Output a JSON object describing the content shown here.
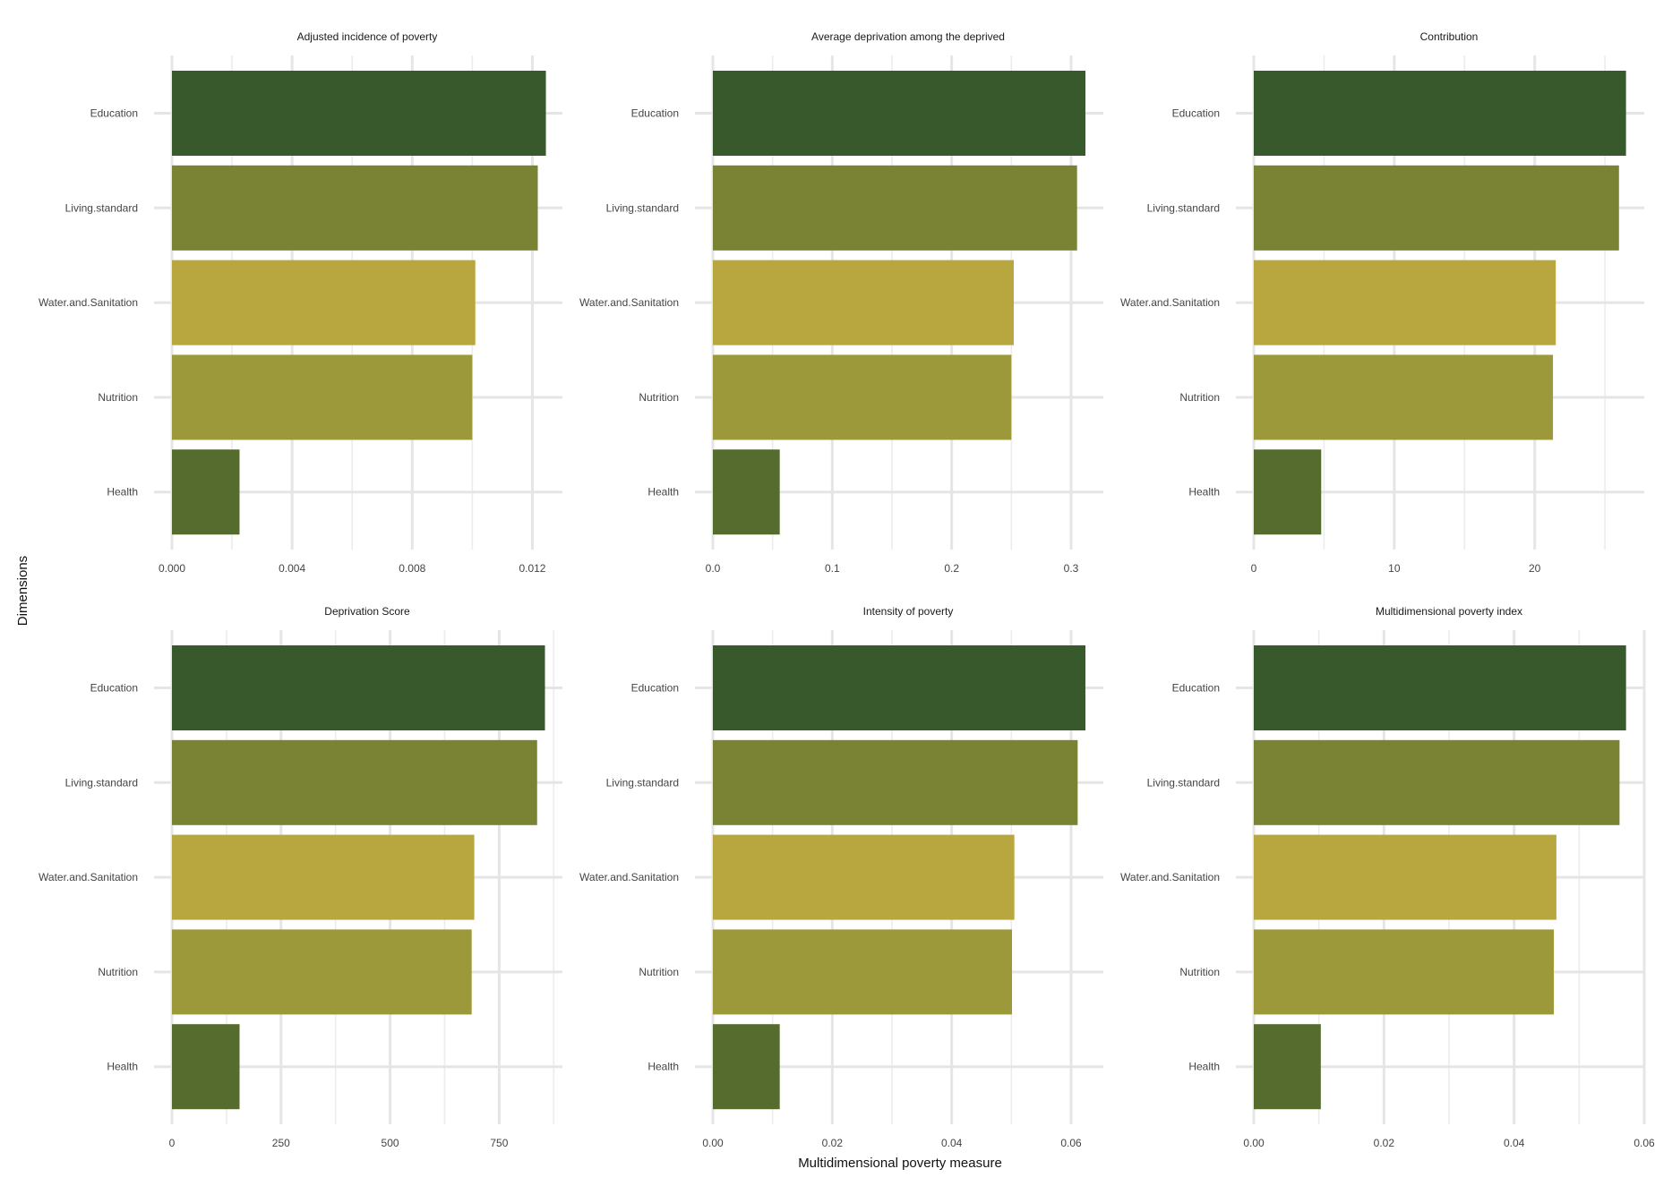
{
  "xlabel": "Multidimensional poverty measure",
  "ylabel": "Dimensions",
  "chart_data": [
    {
      "type": "bar",
      "orientation": "horizontal",
      "title": "Adjusted incidence of poverty",
      "categories": [
        "Education",
        "Living.standard",
        "Water.and.Sanitation",
        "Nutrition",
        "Health"
      ],
      "values": [
        0.01245,
        0.01218,
        0.0101,
        0.01,
        0.00225
      ],
      "colors": [
        "#37592b",
        "#7a8234",
        "#b8a73f",
        "#9c993a",
        "#566c2f"
      ],
      "xlim": [
        0,
        0.013
      ],
      "ticks": [
        0,
        0.004,
        0.008,
        0.012
      ],
      "tick_labels": [
        "0.000",
        "0.004",
        "0.008",
        "0.012"
      ],
      "minor_ticks": [
        0.002,
        0.006,
        0.01
      ]
    },
    {
      "type": "bar",
      "orientation": "horizontal",
      "title": "Average deprivation among the deprived",
      "categories": [
        "Education",
        "Living.standard",
        "Water.and.Sanitation",
        "Nutrition",
        "Health"
      ],
      "values": [
        0.312,
        0.305,
        0.252,
        0.25,
        0.056
      ],
      "colors": [
        "#37592b",
        "#7a8234",
        "#b8a73f",
        "#9c993a",
        "#566c2f"
      ],
      "xlim": [
        0,
        0.327
      ],
      "ticks": [
        0,
        0.1,
        0.2,
        0.3
      ],
      "tick_labels": [
        "0.0",
        "0.1",
        "0.2",
        "0.3"
      ],
      "minor_ticks": [
        0.05,
        0.15,
        0.25
      ]
    },
    {
      "type": "bar",
      "orientation": "horizontal",
      "title": "Contribution",
      "categories": [
        "Education",
        "Living.standard",
        "Water.and.Sanitation",
        "Nutrition",
        "Health"
      ],
      "values": [
        26.5,
        26.0,
        21.5,
        21.3,
        4.8
      ],
      "colors": [
        "#37592b",
        "#7a8234",
        "#b8a73f",
        "#9c993a",
        "#566c2f"
      ],
      "xlim": [
        0,
        27.8
      ],
      "ticks": [
        0,
        10,
        20
      ],
      "tick_labels": [
        "0",
        "10",
        "20"
      ],
      "minor_ticks": [
        5,
        15,
        25
      ]
    },
    {
      "type": "bar",
      "orientation": "horizontal",
      "title": "Deprivation Score",
      "categories": [
        "Education",
        "Living.standard",
        "Water.and.Sanitation",
        "Nutrition",
        "Health"
      ],
      "values": [
        855,
        837,
        693,
        687,
        155
      ],
      "colors": [
        "#37592b",
        "#7a8234",
        "#b8a73f",
        "#9c993a",
        "#566c2f"
      ],
      "xlim": [
        0,
        895
      ],
      "ticks": [
        0,
        250,
        500,
        750
      ],
      "tick_labels": [
        "0",
        "250",
        "500",
        "750"
      ],
      "minor_ticks": [
        125,
        375,
        625,
        875
      ]
    },
    {
      "type": "bar",
      "orientation": "horizontal",
      "title": "Intensity of poverty",
      "categories": [
        "Education",
        "Living.standard",
        "Water.and.Sanitation",
        "Nutrition",
        "Health"
      ],
      "values": [
        0.0624,
        0.0611,
        0.0505,
        0.0501,
        0.0112
      ],
      "colors": [
        "#37592b",
        "#7a8234",
        "#b8a73f",
        "#9c993a",
        "#566c2f"
      ],
      "xlim": [
        0,
        0.0654
      ],
      "ticks": [
        0,
        0.02,
        0.04,
        0.06
      ],
      "tick_labels": [
        "0.00",
        "0.02",
        "0.04",
        "0.06"
      ],
      "minor_ticks": [
        0.01,
        0.03,
        0.05
      ]
    },
    {
      "type": "bar",
      "orientation": "horizontal",
      "title": "Multidimensional poverty index",
      "categories": [
        "Education",
        "Living.standard",
        "Water.and.Sanitation",
        "Nutrition",
        "Health"
      ],
      "values": [
        0.0572,
        0.0562,
        0.0465,
        0.0461,
        0.0103
      ],
      "colors": [
        "#37592b",
        "#7a8234",
        "#b8a73f",
        "#9c993a",
        "#566c2f"
      ],
      "xlim": [
        0,
        0.06
      ],
      "ticks": [
        0,
        0.02,
        0.04,
        0.06
      ],
      "tick_labels": [
        "0.00",
        "0.02",
        "0.04",
        "0.06"
      ],
      "minor_ticks": [
        0.01,
        0.03,
        0.05
      ]
    }
  ]
}
